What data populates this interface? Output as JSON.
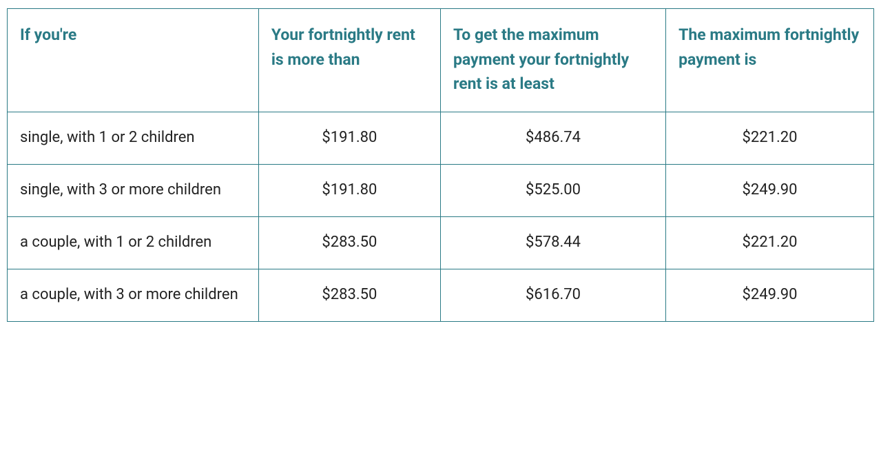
{
  "table": {
    "type": "table",
    "border_color": "#2a7a85",
    "header_text_color": "#2a7a85",
    "body_text_color": "#222222",
    "background_color": "#ffffff",
    "header_fontsize_pt": 17,
    "body_fontsize_pt": 16,
    "font_weight_header": 700,
    "font_weight_body": 400,
    "column_widths_pct": [
      29,
      21,
      26,
      24
    ],
    "value_alignment": "center",
    "first_column_alignment": "left",
    "columns": [
      "If you're",
      "Your fortnightly rent is more than",
      "To get the maximum payment your fortnightly rent is at least",
      "The maximum fortnightly payment is"
    ],
    "rows": [
      {
        "label": "single, with 1 or 2 children",
        "rent_more_than": "$191.80",
        "rent_at_least": "$486.74",
        "max_payment": "$221.20"
      },
      {
        "label": "single, with 3 or more children",
        "rent_more_than": "$191.80",
        "rent_at_least": "$525.00",
        "max_payment": "$249.90"
      },
      {
        "label": "a couple, with 1 or 2 children",
        "rent_more_than": "$283.50",
        "rent_at_least": "$578.44",
        "max_payment": "$221.20"
      },
      {
        "label": "a couple, with 3 or more children",
        "rent_more_than": "$283.50",
        "rent_at_least": "$616.70",
        "max_payment": "$249.90"
      }
    ]
  }
}
